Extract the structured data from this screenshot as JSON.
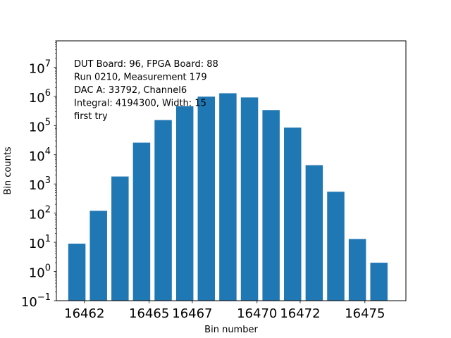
{
  "chart_data": {
    "type": "bar",
    "xlabel": "Bin number",
    "ylabel": "Bin counts",
    "y_scale": "log",
    "ylim": [
      0.1,
      80000000
    ],
    "xlim": [
      16460.7,
      16476.9
    ],
    "bar_color": "#1f77b4",
    "x_ticks": [
      16462,
      16465,
      16467,
      16470,
      16472,
      16475
    ],
    "x_tick_labels": [
      "16462",
      "16465",
      "16467",
      "16470",
      "16472",
      "16475"
    ],
    "y_ticks": [
      {
        "value": 0.1,
        "base": "10",
        "exp": "−1"
      },
      {
        "value": 1,
        "base": "10",
        "exp": "0"
      },
      {
        "value": 10,
        "base": "10",
        "exp": "1"
      },
      {
        "value": 100,
        "base": "10",
        "exp": "2"
      },
      {
        "value": 1000,
        "base": "10",
        "exp": "3"
      },
      {
        "value": 10000,
        "base": "10",
        "exp": "4"
      },
      {
        "value": 100000,
        "base": "10",
        "exp": "5"
      },
      {
        "value": 1000000,
        "base": "10",
        "exp": "6"
      },
      {
        "value": 10000000,
        "base": "10",
        "exp": "7"
      }
    ],
    "bars": [
      {
        "x": 16461.65,
        "value": 9
      },
      {
        "x": 16462.65,
        "value": 120
      },
      {
        "x": 16463.65,
        "value": 1800
      },
      {
        "x": 16464.65,
        "value": 26000
      },
      {
        "x": 16465.65,
        "value": 155000
      },
      {
        "x": 16466.65,
        "value": 460000
      },
      {
        "x": 16467.65,
        "value": 980000
      },
      {
        "x": 16468.65,
        "value": 1280000
      },
      {
        "x": 16469.65,
        "value": 920000
      },
      {
        "x": 16470.65,
        "value": 340000
      },
      {
        "x": 16471.65,
        "value": 85000
      },
      {
        "x": 16472.65,
        "value": 4400
      },
      {
        "x": 16473.65,
        "value": 540
      },
      {
        "x": 16474.65,
        "value": 13
      },
      {
        "x": 16475.65,
        "value": 2
      }
    ],
    "bar_width": 0.8,
    "annotations": [
      "DUT Board: 96, FPGA Board: 88",
      "Run 0210, Measurement 179",
      "DAC A: 33792, Channel6",
      "Integral: 4194300, Width: 15",
      "first try"
    ]
  }
}
